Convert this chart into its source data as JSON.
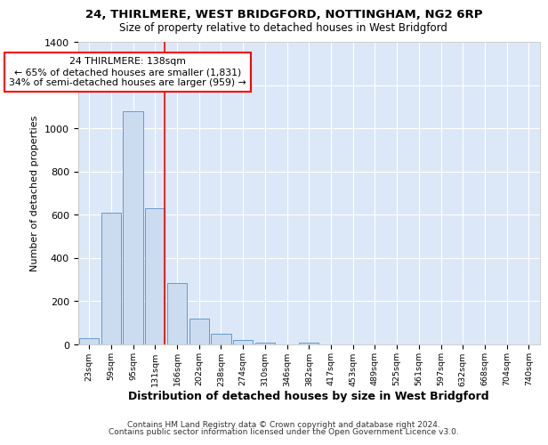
{
  "title1": "24, THIRLMERE, WEST BRIDGFORD, NOTTINGHAM, NG2 6RP",
  "title2": "Size of property relative to detached houses in West Bridgford",
  "xlabel": "Distribution of detached houses by size in West Bridgford",
  "ylabel": "Number of detached properties",
  "categories": [
    "23sqm",
    "59sqm",
    "95sqm",
    "131sqm",
    "166sqm",
    "202sqm",
    "238sqm",
    "274sqm",
    "310sqm",
    "346sqm",
    "382sqm",
    "417sqm",
    "453sqm",
    "489sqm",
    "525sqm",
    "561sqm",
    "597sqm",
    "632sqm",
    "668sqm",
    "704sqm",
    "740sqm"
  ],
  "values": [
    30,
    610,
    1080,
    630,
    285,
    120,
    48,
    22,
    10,
    0,
    10,
    0,
    0,
    0,
    0,
    0,
    0,
    0,
    0,
    0,
    0
  ],
  "bar_color": "#ccdcf0",
  "bar_edge_color": "#6699cc",
  "red_line_x": 3.0,
  "annotation_text": "24 THIRLMERE: 138sqm\n← 65% of detached houses are smaller (1,831)\n34% of semi-detached houses are larger (959) →",
  "annotation_box_color": "white",
  "annotation_edge_color": "red",
  "ylim": [
    0,
    1400
  ],
  "yticks": [
    0,
    200,
    400,
    600,
    800,
    1000,
    1200,
    1400
  ],
  "footer1": "Contains HM Land Registry data © Crown copyright and database right 2024.",
  "footer2": "Contains public sector information licensed under the Open Government Licence v3.0.",
  "bg_color": "#ffffff",
  "plot_bg_color": "#dce8f8"
}
